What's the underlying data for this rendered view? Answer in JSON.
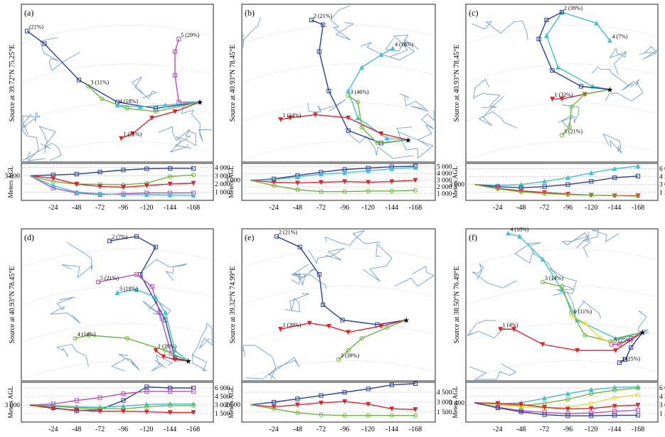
{
  "figure": {
    "source_prefix": "Source  at",
    "ylabel": "Meters AGL",
    "x_ticks": [
      "-24",
      "-48",
      "-72",
      "-96",
      "-120",
      "-144",
      "-168"
    ],
    "colors": {
      "blue": "#2a3f9e",
      "cyan": "#3ec1d0",
      "green": "#6ab83a",
      "red": "#e0222a",
      "magenta": "#b84cc2",
      "yellow": "#e8d83a",
      "map_line": "#6f9fd0",
      "grid": "#9aa0a6",
      "frame": "#222222"
    }
  },
  "chart_data": [
    {
      "panel": "(a)",
      "type": "line",
      "source": {
        "lat": "39.72°N",
        "lon": "75.25°E"
      },
      "start_height": "3 000",
      "ytick_labels": [
        "4 000",
        "3 000",
        "2 000",
        "1 000"
      ],
      "ylim": [
        0,
        4500
      ],
      "x": [
        0,
        -24,
        -48,
        -72,
        -96,
        -120,
        -144,
        -168
      ],
      "series": [
        {
          "label": "(21%)",
          "color": "blue",
          "values": [
            3000,
            3100,
            3200,
            3450,
            3700,
            3850,
            3900,
            3900
          ]
        },
        {
          "label": "3 (11%)",
          "color": "green",
          "values": [
            3000,
            2300,
            2000,
            1950,
            1900,
            2100,
            2900,
            3100
          ]
        },
        {
          "label": "1 (21%)",
          "color": "red",
          "values": [
            3000,
            2700,
            2000,
            1700,
            1600,
            1800,
            2000,
            2100
          ]
        },
        {
          "label": "5 (29%)",
          "color": "magenta",
          "values": [
            3000,
            1500,
            900,
            700,
            800,
            900,
            900,
            900
          ]
        },
        {
          "label": "4 (18%)",
          "color": "cyan",
          "values": [
            3000,
            1800,
            1000,
            800,
            700,
            700,
            650,
            600
          ]
        }
      ]
    },
    {
      "panel": "(b)",
      "type": "line",
      "source": {
        "lat": "40.93°N",
        "lon": "78.45°E"
      },
      "start_height": "3 000",
      "ytick_labels": [
        "5 000",
        "4 000",
        "3 000",
        "2 000",
        "1 000"
      ],
      "ylim": [
        0,
        5500
      ],
      "x": [
        0,
        -24,
        -48,
        -72,
        -96,
        -120,
        -144,
        -168
      ],
      "series": [
        {
          "label": "2 (21%)",
          "color": "blue",
          "values": [
            3000,
            3200,
            3700,
            4200,
            4600,
            4800,
            5000,
            5100
          ]
        },
        {
          "label": "4 (18%)",
          "color": "cyan",
          "values": [
            3000,
            3100,
            3500,
            3900,
            4100,
            4400,
            4700,
            4900
          ]
        },
        {
          "label": "1 (14%)",
          "color": "red",
          "values": [
            3000,
            2700,
            2600,
            2700,
            2800,
            2700,
            2800,
            3000
          ]
        },
        {
          "label": "3 (46%)",
          "color": "green",
          "values": [
            3000,
            2200,
            1600,
            1300,
            1300,
            1400,
            1400,
            1500
          ]
        }
      ]
    },
    {
      "panel": "(c)",
      "type": "line",
      "source": {
        "lat": "40.93°N",
        "lon": "78.45°E"
      },
      "start_height": "3 000",
      "ytick_labels": [
        "6 000",
        "4 500",
        "3 000",
        "1 500"
      ],
      "ylim": [
        0,
        7000
      ],
      "x": [
        0,
        -24,
        -48,
        -72,
        -96,
        -120,
        -144,
        -168
      ],
      "series": [
        {
          "label": "4 (7%)",
          "color": "cyan",
          "values": [
            3000,
            2800,
            3000,
            3600,
            4300,
            5200,
            6000,
            6500
          ]
        },
        {
          "label": "2 (39%)",
          "color": "blue",
          "values": [
            3000,
            2600,
            2400,
            2600,
            3000,
            3600,
            4300,
            4600
          ]
        },
        {
          "label": "1 (32%)",
          "color": "red",
          "values": [
            3000,
            2300,
            1800,
            1500,
            1200,
            1000,
            900,
            900
          ]
        },
        {
          "label": "3 (21%)",
          "color": "green",
          "values": [
            3000,
            2200,
            1600,
            1300,
            1100,
            1000,
            900,
            800
          ]
        }
      ]
    },
    {
      "panel": "(d)",
      "type": "line",
      "source": {
        "lat": "40.93°N",
        "lon": "78.45°E"
      },
      "start_height": "3 000",
      "ytick_labels": [
        "6 000",
        "4 500",
        "3 000",
        "1 500"
      ],
      "ylim": [
        0,
        7000
      ],
      "x": [
        0,
        -24,
        -48,
        -72,
        -96,
        -120,
        -144,
        -168
      ],
      "series": [
        {
          "label": "2 (7%)",
          "color": "blue",
          "values": [
            3000,
            2500,
            2000,
            2200,
            3800,
            6200,
            6000,
            6000
          ]
        },
        {
          "label": "5 (21%)",
          "color": "magenta",
          "values": [
            3000,
            3200,
            3800,
            4300,
            5000,
            5400,
            5400,
            5400
          ]
        },
        {
          "label": "3 (18%)",
          "color": "cyan",
          "values": [
            3000,
            2900,
            2700,
            2600,
            2800,
            3100,
            3200,
            3200
          ]
        },
        {
          "label": "4 (14%)",
          "color": "green",
          "values": [
            3000,
            2800,
            2500,
            2400,
            2300,
            2700,
            2900,
            2900
          ]
        },
        {
          "label": "1 (39%)",
          "color": "red",
          "values": [
            3000,
            2400,
            2100,
            1900,
            1900,
            1800,
            1700,
            1700
          ]
        }
      ]
    },
    {
      "panel": "(e)",
      "type": "line",
      "source": {
        "lat": "39.32°N",
        "lon": "74.99°E"
      },
      "start_height": "2 600",
      "ytick_labels": [
        "4 500",
        "3 000",
        "1 500"
      ],
      "ylim": [
        0,
        6000
      ],
      "x": [
        0,
        -24,
        -48,
        -72,
        -96,
        -120,
        -144,
        -168
      ],
      "series": [
        {
          "label": "2 (21%)",
          "color": "blue",
          "values": [
            2600,
            3000,
            3500,
            4000,
            4500,
            5000,
            5600,
            5800
          ]
        },
        {
          "label": "1 (39%)",
          "color": "red",
          "values": [
            2600,
            2300,
            2600,
            2900,
            3100,
            2700,
            2000,
            1900
          ]
        },
        {
          "label": "3 (39%)",
          "color": "green",
          "values": [
            2600,
            2000,
            1400,
            1100,
            1000,
            1000,
            1000,
            1000
          ]
        }
      ]
    },
    {
      "panel": "(f)",
      "type": "line",
      "source": {
        "lat": "38.50°N",
        "lon": "76.49°E"
      },
      "start_height": "3 400",
      "ytick_labels": [
        "6 000",
        "4 500",
        "3 000",
        "1 500"
      ],
      "ylim": [
        0,
        7000
      ],
      "x": [
        0,
        -24,
        -48,
        -72,
        -96,
        -120,
        -144,
        -168
      ],
      "series": [
        {
          "label": "4 (18%)",
          "color": "cyan",
          "values": [
            3400,
            3200,
            3400,
            4200,
            5000,
            5700,
            6100,
            6200
          ]
        },
        {
          "label": "3 (14%)",
          "color": "green",
          "values": [
            3400,
            3100,
            2900,
            3300,
            4000,
            5000,
            5600,
            6000
          ]
        },
        {
          "label": "6 (11%)",
          "color": "yellow",
          "values": [
            3400,
            3000,
            2700,
            2500,
            2600,
            3300,
            4300,
            4800
          ]
        },
        {
          "label": "1 (4%)",
          "color": "red",
          "values": [
            3400,
            3300,
            3100,
            2600,
            2300,
            2400,
            2800,
            3000
          ]
        },
        {
          "label": "5 (25%)",
          "color": "magenta",
          "values": [
            3400,
            2600,
            2000,
            1700,
            1500,
            1600,
            1900,
            2100
          ]
        },
        {
          "label": "2 (25%)",
          "color": "blue",
          "values": [
            3400,
            2500,
            1800,
            1300,
            1100,
            1100,
            1200,
            1200
          ]
        }
      ]
    }
  ]
}
